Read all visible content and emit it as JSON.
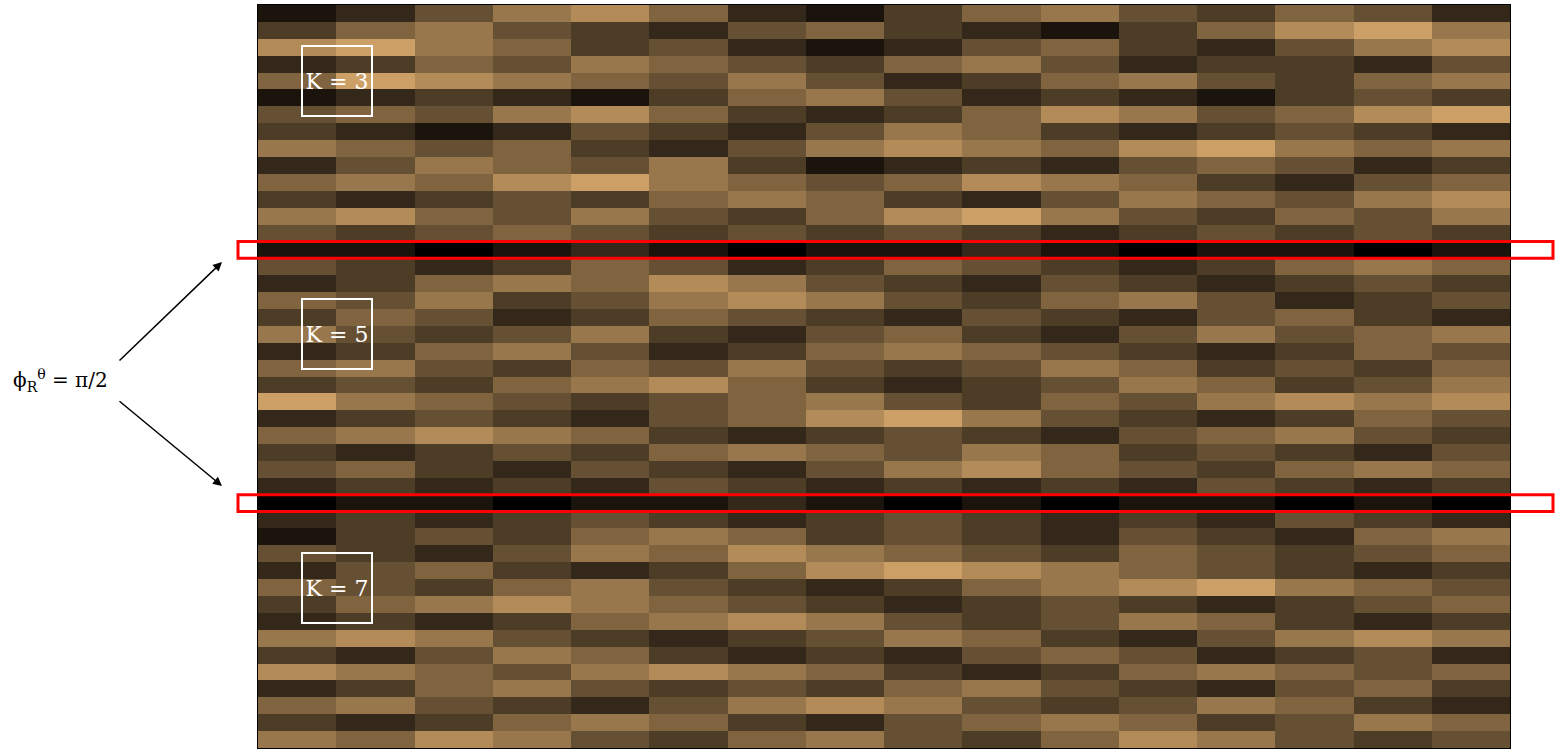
{
  "chart_data": {
    "type": "heatmap",
    "tick_labels": false,
    "zlim": [
      0,
      1
    ],
    "colorscale": [
      "#000000",
      "#ffc77f"
    ],
    "panels": [
      {
        "label": "K = 3",
        "rows": [
          0,
          13
        ]
      },
      {
        "label": "K = 5",
        "rows": [
          15,
          28
        ]
      },
      {
        "label": "K = 7",
        "rows": [
          30,
          43
        ]
      }
    ],
    "highlight_rows": [
      14,
      29
    ],
    "highlight_color": "#ff0000",
    "highlight_label": {
      "symbol": "ϕ",
      "sub": "R",
      "sup": "θ",
      "rest": " = π/2"
    },
    "cells": [
      [
        0.1,
        0.2,
        0.4,
        0.6,
        0.7,
        0.5,
        0.2,
        0.1,
        0.3,
        0.5,
        0.6,
        0.4,
        0.3,
        0.5,
        0.4,
        0.2
      ],
      [
        0.3,
        0.5,
        0.6,
        0.4,
        0.3,
        0.2,
        0.4,
        0.5,
        0.3,
        0.2,
        0.1,
        0.3,
        0.5,
        0.7,
        0.8,
        0.6
      ],
      [
        0.7,
        0.8,
        0.6,
        0.5,
        0.3,
        0.4,
        0.2,
        0.1,
        0.2,
        0.4,
        0.5,
        0.3,
        0.2,
        0.4,
        0.6,
        0.7
      ],
      [
        0.2,
        0.3,
        0.5,
        0.4,
        0.6,
        0.5,
        0.4,
        0.3,
        0.5,
        0.6,
        0.4,
        0.2,
        0.3,
        0.3,
        0.2,
        0.4
      ],
      [
        0.5,
        0.8,
        0.7,
        0.6,
        0.5,
        0.4,
        0.6,
        0.4,
        0.2,
        0.3,
        0.5,
        0.6,
        0.4,
        0.3,
        0.5,
        0.6
      ],
      [
        0.1,
        0.2,
        0.3,
        0.2,
        0.1,
        0.3,
        0.5,
        0.6,
        0.4,
        0.2,
        0.3,
        0.2,
        0.1,
        0.3,
        0.4,
        0.3
      ],
      [
        0.4,
        0.5,
        0.4,
        0.6,
        0.7,
        0.5,
        0.3,
        0.2,
        0.3,
        0.5,
        0.7,
        0.6,
        0.4,
        0.5,
        0.7,
        0.8
      ],
      [
        0.3,
        0.2,
        0.1,
        0.2,
        0.4,
        0.3,
        0.2,
        0.4,
        0.6,
        0.5,
        0.3,
        0.2,
        0.3,
        0.4,
        0.3,
        0.2
      ],
      [
        0.6,
        0.5,
        0.4,
        0.5,
        0.3,
        0.2,
        0.4,
        0.6,
        0.7,
        0.6,
        0.5,
        0.7,
        0.8,
        0.6,
        0.5,
        0.6
      ],
      [
        0.2,
        0.4,
        0.6,
        0.5,
        0.4,
        0.6,
        0.3,
        0.1,
        0.2,
        0.3,
        0.2,
        0.4,
        0.5,
        0.4,
        0.2,
        0.3
      ],
      [
        0.5,
        0.6,
        0.5,
        0.7,
        0.8,
        0.6,
        0.5,
        0.4,
        0.5,
        0.7,
        0.6,
        0.5,
        0.3,
        0.2,
        0.4,
        0.5
      ],
      [
        0.3,
        0.2,
        0.3,
        0.4,
        0.3,
        0.5,
        0.6,
        0.5,
        0.3,
        0.2,
        0.4,
        0.6,
        0.5,
        0.4,
        0.6,
        0.7
      ],
      [
        0.6,
        0.7,
        0.5,
        0.4,
        0.6,
        0.4,
        0.3,
        0.5,
        0.7,
        0.8,
        0.6,
        0.4,
        0.3,
        0.5,
        0.4,
        0.6
      ],
      [
        0.4,
        0.3,
        0.4,
        0.5,
        0.4,
        0.3,
        0.4,
        0.3,
        0.4,
        0.3,
        0.2,
        0.3,
        0.4,
        0.3,
        0.4,
        0.3
      ],
      [
        0.1,
        0.1,
        0.0,
        0.1,
        0.2,
        0.1,
        0.0,
        0.1,
        0.1,
        0.2,
        0.1,
        0.0,
        0.1,
        0.1,
        0.0,
        0.1
      ],
      [
        0.4,
        0.3,
        0.2,
        0.3,
        0.5,
        0.4,
        0.2,
        0.3,
        0.5,
        0.4,
        0.3,
        0.2,
        0.3,
        0.5,
        0.6,
        0.5
      ],
      [
        0.2,
        0.3,
        0.5,
        0.6,
        0.5,
        0.7,
        0.6,
        0.4,
        0.3,
        0.2,
        0.4,
        0.3,
        0.2,
        0.3,
        0.4,
        0.3
      ],
      [
        0.5,
        0.4,
        0.6,
        0.3,
        0.4,
        0.6,
        0.7,
        0.6,
        0.4,
        0.3,
        0.5,
        0.6,
        0.4,
        0.2,
        0.3,
        0.4
      ],
      [
        0.3,
        0.5,
        0.4,
        0.2,
        0.3,
        0.5,
        0.4,
        0.3,
        0.2,
        0.4,
        0.3,
        0.2,
        0.4,
        0.5,
        0.3,
        0.2
      ],
      [
        0.6,
        0.4,
        0.3,
        0.4,
        0.6,
        0.3,
        0.2,
        0.4,
        0.5,
        0.3,
        0.2,
        0.4,
        0.6,
        0.4,
        0.5,
        0.6
      ],
      [
        0.2,
        0.3,
        0.5,
        0.6,
        0.4,
        0.2,
        0.3,
        0.5,
        0.6,
        0.5,
        0.4,
        0.3,
        0.2,
        0.3,
        0.5,
        0.4
      ],
      [
        0.5,
        0.6,
        0.4,
        0.3,
        0.5,
        0.4,
        0.6,
        0.4,
        0.3,
        0.4,
        0.6,
        0.5,
        0.3,
        0.4,
        0.3,
        0.5
      ],
      [
        0.3,
        0.4,
        0.3,
        0.5,
        0.6,
        0.7,
        0.5,
        0.3,
        0.2,
        0.3,
        0.4,
        0.6,
        0.5,
        0.3,
        0.4,
        0.6
      ],
      [
        0.8,
        0.6,
        0.5,
        0.4,
        0.3,
        0.4,
        0.5,
        0.6,
        0.4,
        0.3,
        0.5,
        0.4,
        0.6,
        0.7,
        0.6,
        0.7
      ],
      [
        0.2,
        0.3,
        0.4,
        0.3,
        0.2,
        0.4,
        0.5,
        0.7,
        0.8,
        0.6,
        0.4,
        0.3,
        0.2,
        0.3,
        0.5,
        0.4
      ],
      [
        0.5,
        0.6,
        0.7,
        0.6,
        0.5,
        0.3,
        0.2,
        0.3,
        0.4,
        0.3,
        0.2,
        0.4,
        0.5,
        0.6,
        0.4,
        0.3
      ],
      [
        0.3,
        0.2,
        0.3,
        0.4,
        0.3,
        0.5,
        0.6,
        0.5,
        0.4,
        0.6,
        0.5,
        0.3,
        0.4,
        0.3,
        0.2,
        0.4
      ],
      [
        0.4,
        0.5,
        0.3,
        0.2,
        0.4,
        0.3,
        0.2,
        0.4,
        0.6,
        0.7,
        0.5,
        0.4,
        0.3,
        0.5,
        0.6,
        0.5
      ],
      [
        0.2,
        0.3,
        0.2,
        0.3,
        0.2,
        0.4,
        0.3,
        0.2,
        0.3,
        0.2,
        0.3,
        0.2,
        0.4,
        0.3,
        0.2,
        0.3
      ],
      [
        0.0,
        0.1,
        0.1,
        0.0,
        0.1,
        0.1,
        0.2,
        0.1,
        0.0,
        0.1,
        0.0,
        0.1,
        0.1,
        0.0,
        0.1,
        0.0
      ],
      [
        0.2,
        0.3,
        0.2,
        0.3,
        0.4,
        0.3,
        0.2,
        0.3,
        0.4,
        0.3,
        0.2,
        0.3,
        0.2,
        0.4,
        0.3,
        0.2
      ],
      [
        0.1,
        0.3,
        0.4,
        0.3,
        0.5,
        0.6,
        0.5,
        0.3,
        0.4,
        0.3,
        0.2,
        0.4,
        0.3,
        0.2,
        0.5,
        0.6
      ],
      [
        0.4,
        0.3,
        0.2,
        0.4,
        0.6,
        0.5,
        0.7,
        0.6,
        0.5,
        0.4,
        0.3,
        0.5,
        0.4,
        0.3,
        0.4,
        0.5
      ],
      [
        0.2,
        0.4,
        0.5,
        0.3,
        0.2,
        0.3,
        0.5,
        0.7,
        0.8,
        0.7,
        0.6,
        0.5,
        0.4,
        0.3,
        0.2,
        0.3
      ],
      [
        0.5,
        0.4,
        0.3,
        0.5,
        0.6,
        0.4,
        0.3,
        0.2,
        0.3,
        0.5,
        0.6,
        0.7,
        0.8,
        0.6,
        0.5,
        0.4
      ],
      [
        0.3,
        0.5,
        0.6,
        0.7,
        0.6,
        0.5,
        0.4,
        0.3,
        0.2,
        0.3,
        0.4,
        0.3,
        0.2,
        0.3,
        0.4,
        0.5
      ],
      [
        0.2,
        0.3,
        0.2,
        0.3,
        0.5,
        0.6,
        0.7,
        0.6,
        0.4,
        0.3,
        0.4,
        0.6,
        0.5,
        0.3,
        0.2,
        0.3
      ],
      [
        0.6,
        0.7,
        0.6,
        0.4,
        0.3,
        0.2,
        0.3,
        0.4,
        0.6,
        0.5,
        0.3,
        0.2,
        0.4,
        0.6,
        0.7,
        0.6
      ],
      [
        0.3,
        0.2,
        0.4,
        0.6,
        0.5,
        0.3,
        0.2,
        0.3,
        0.2,
        0.4,
        0.5,
        0.4,
        0.2,
        0.3,
        0.4,
        0.2
      ],
      [
        0.7,
        0.6,
        0.5,
        0.4,
        0.6,
        0.7,
        0.6,
        0.5,
        0.3,
        0.2,
        0.3,
        0.5,
        0.6,
        0.5,
        0.4,
        0.5
      ],
      [
        0.2,
        0.3,
        0.5,
        0.6,
        0.4,
        0.3,
        0.4,
        0.3,
        0.5,
        0.6,
        0.4,
        0.3,
        0.2,
        0.4,
        0.5,
        0.3
      ],
      [
        0.5,
        0.6,
        0.4,
        0.3,
        0.2,
        0.4,
        0.6,
        0.7,
        0.6,
        0.4,
        0.3,
        0.4,
        0.6,
        0.5,
        0.3,
        0.2
      ],
      [
        0.3,
        0.2,
        0.3,
        0.5,
        0.6,
        0.5,
        0.3,
        0.2,
        0.4,
        0.5,
        0.6,
        0.5,
        0.3,
        0.4,
        0.6,
        0.5
      ],
      [
        0.6,
        0.5,
        0.7,
        0.6,
        0.4,
        0.3,
        0.5,
        0.6,
        0.4,
        0.3,
        0.5,
        0.7,
        0.6,
        0.4,
        0.3,
        0.4
      ]
    ]
  }
}
